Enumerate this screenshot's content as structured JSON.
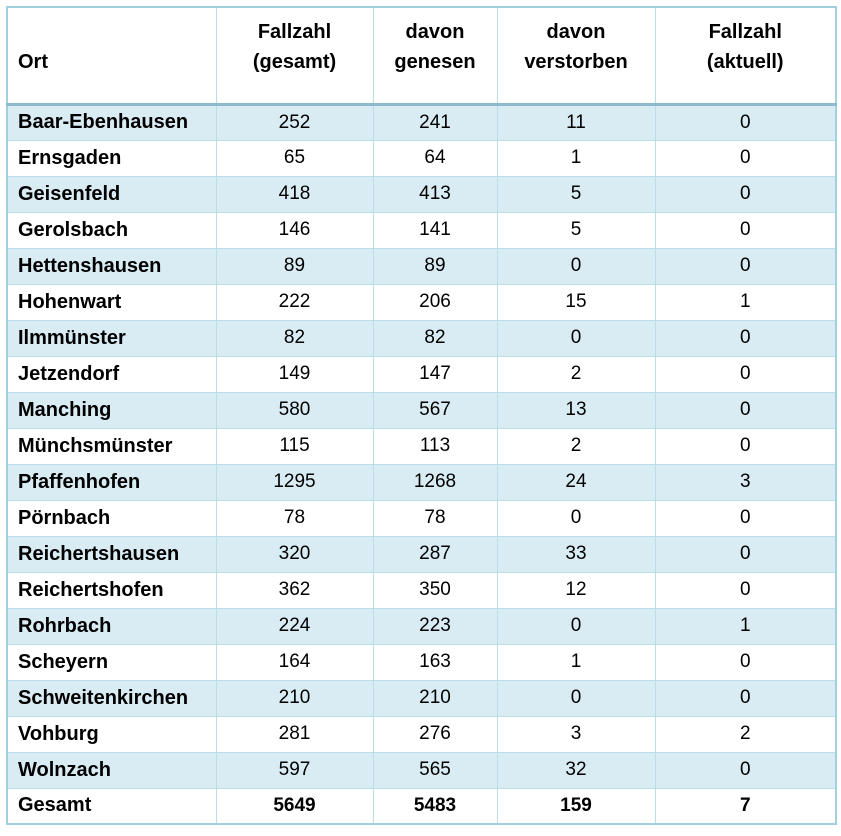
{
  "table": {
    "headers": [
      {
        "line1": "Ort",
        "line2": ""
      },
      {
        "line1": "Fallzahl",
        "line2": "(gesamt)"
      },
      {
        "line1": "davon",
        "line2": "genesen"
      },
      {
        "line1": "davon",
        "line2": "verstorben"
      },
      {
        "line1": "Fallzahl",
        "line2": "(aktuell)"
      }
    ],
    "rows": [
      {
        "ort": "Baar-Ebenhausen",
        "gesamt": "252",
        "genesen": "241",
        "verstorben": "11",
        "aktuell": "0"
      },
      {
        "ort": "Ernsgaden",
        "gesamt": "65",
        "genesen": "64",
        "verstorben": "1",
        "aktuell": "0"
      },
      {
        "ort": "Geisenfeld",
        "gesamt": "418",
        "genesen": "413",
        "verstorben": "5",
        "aktuell": "0"
      },
      {
        "ort": "Gerolsbach",
        "gesamt": "146",
        "genesen": "141",
        "verstorben": "5",
        "aktuell": "0"
      },
      {
        "ort": "Hettenshausen",
        "gesamt": "89",
        "genesen": "89",
        "verstorben": "0",
        "aktuell": "0"
      },
      {
        "ort": "Hohenwart",
        "gesamt": "222",
        "genesen": "206",
        "verstorben": "15",
        "aktuell": "1"
      },
      {
        "ort": "Ilmmünster",
        "gesamt": "82",
        "genesen": "82",
        "verstorben": "0",
        "aktuell": "0"
      },
      {
        "ort": "Jetzendorf",
        "gesamt": "149",
        "genesen": "147",
        "verstorben": "2",
        "aktuell": "0"
      },
      {
        "ort": "Manching",
        "gesamt": "580",
        "genesen": "567",
        "verstorben": "13",
        "aktuell": "0"
      },
      {
        "ort": "Münchsmünster",
        "gesamt": "115",
        "genesen": "113",
        "verstorben": "2",
        "aktuell": "0"
      },
      {
        "ort": "Pfaffenhofen",
        "gesamt": "1295",
        "genesen": "1268",
        "verstorben": "24",
        "aktuell": "3"
      },
      {
        "ort": "Pörnbach",
        "gesamt": "78",
        "genesen": "78",
        "verstorben": "0",
        "aktuell": "0"
      },
      {
        "ort": "Reichertshausen",
        "gesamt": "320",
        "genesen": "287",
        "verstorben": "33",
        "aktuell": "0"
      },
      {
        "ort": "Reichertshofen",
        "gesamt": "362",
        "genesen": "350",
        "verstorben": "12",
        "aktuell": "0"
      },
      {
        "ort": "Rohrbach",
        "gesamt": "224",
        "genesen": "223",
        "verstorben": "0",
        "aktuell": "1"
      },
      {
        "ort": "Scheyern",
        "gesamt": "164",
        "genesen": "163",
        "verstorben": "1",
        "aktuell": "0"
      },
      {
        "ort": "Schweitenkirchen",
        "gesamt": "210",
        "genesen": "210",
        "verstorben": "0",
        "aktuell": "0"
      },
      {
        "ort": "Vohburg",
        "gesamt": "281",
        "genesen": "276",
        "verstorben": "3",
        "aktuell": "2"
      },
      {
        "ort": "Wolnzach",
        "gesamt": "597",
        "genesen": "565",
        "verstorben": "32",
        "aktuell": "0"
      }
    ],
    "total": {
      "ort": "Gesamt",
      "gesamt": "5649",
      "genesen": "5483",
      "verstorben": "159",
      "aktuell": "7"
    }
  },
  "colors": {
    "row_shade": "#d9ecf3",
    "grid_border": "#b9dde9",
    "outer_border": "#a3cfdf",
    "header_separator": "#8db9cc",
    "text": "#000000"
  }
}
